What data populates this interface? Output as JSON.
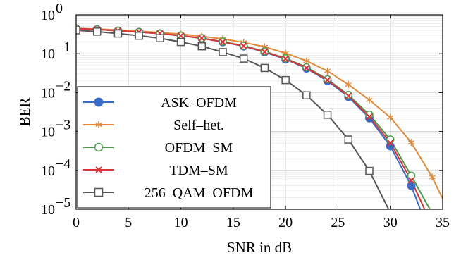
{
  "chart_data": {
    "type": "line",
    "xlabel": "SNR in dB",
    "ylabel": "BER",
    "xlim": [
      0,
      35
    ],
    "ylim_log10": [
      -5,
      0
    ],
    "y_scale": "log",
    "x_ticks": [
      0,
      5,
      10,
      15,
      20,
      25,
      30,
      35
    ],
    "x_tick_labels": [
      "0",
      "5",
      "10",
      "15",
      "20",
      "25",
      "30",
      "35"
    ],
    "y_tick_exponents": [
      0,
      -1,
      -2,
      -3,
      -4,
      -5
    ],
    "y_tick_base": "10",
    "grid": true,
    "legend_position": "lower-left",
    "series": [
      {
        "name": "ASK–OFDM",
        "color": "#3a6bc4",
        "marker": "filled-circle",
        "x": [
          0,
          2,
          4,
          6,
          8,
          10,
          12,
          14,
          16,
          18,
          20,
          22,
          24,
          26,
          28,
          30,
          32,
          34
        ],
        "y": [
          0.44,
          0.42,
          0.39,
          0.36,
          0.33,
          0.29,
          0.25,
          0.2,
          0.155,
          0.11,
          0.072,
          0.042,
          0.02,
          0.0078,
          0.0022,
          0.00042,
          4e-05,
          1.6e-06
        ],
        "curve_x": [
          35
        ],
        "curve_y": [
          2.5e-06
        ]
      },
      {
        "name": "Self–het.",
        "color": "#e08a3c",
        "marker": "asterisk",
        "x": [
          0,
          2,
          4,
          6,
          8,
          10,
          12,
          14,
          16,
          18,
          20,
          22,
          24,
          26,
          28,
          30,
          32,
          34
        ],
        "y": [
          0.45,
          0.43,
          0.41,
          0.38,
          0.35,
          0.32,
          0.28,
          0.24,
          0.195,
          0.15,
          0.103,
          0.065,
          0.036,
          0.016,
          0.0065,
          0.0023,
          0.00052,
          6.7e-05
        ],
        "curve_x": [
          35
        ],
        "curve_y": [
          1.85e-05
        ]
      },
      {
        "name": "OFDM–SM",
        "color": "#4a9a4a",
        "marker": "open-circle",
        "x": [
          0,
          2,
          4,
          6,
          8,
          10,
          12,
          14,
          16,
          18,
          20,
          22,
          24,
          26,
          28,
          30,
          32,
          34
        ],
        "y": [
          0.44,
          0.42,
          0.39,
          0.36,
          0.33,
          0.29,
          0.25,
          0.205,
          0.16,
          0.115,
          0.076,
          0.045,
          0.022,
          0.0087,
          0.0027,
          0.00062,
          7.3e-05,
          7.8e-06
        ],
        "curve_x": [
          35
        ],
        "curve_y": [
          2.5e-06
        ]
      },
      {
        "name": "TDM–SM",
        "color": "#d9343a",
        "marker": "cross",
        "x": [
          0,
          2,
          4,
          6,
          8,
          10,
          12,
          14,
          16,
          18,
          20,
          22,
          24,
          26,
          28,
          30,
          32,
          34
        ],
        "y": [
          0.44,
          0.42,
          0.39,
          0.36,
          0.33,
          0.29,
          0.25,
          0.2,
          0.157,
          0.112,
          0.074,
          0.043,
          0.021,
          0.0082,
          0.0024,
          0.00051,
          5.5e-05,
          3.8e-06
        ],
        "curve_x": [
          35
        ],
        "curve_y": [
          2.5e-06
        ]
      },
      {
        "name": "256–QAM–OFDM",
        "color": "#555555",
        "marker": "open-square",
        "x": [
          0,
          2,
          4,
          6,
          8,
          10,
          12,
          14,
          16,
          18,
          20,
          22,
          24,
          26,
          28,
          30,
          31
        ],
        "y": [
          0.4,
          0.37,
          0.33,
          0.29,
          0.25,
          0.2,
          0.155,
          0.11,
          0.075,
          0.043,
          0.021,
          0.0085,
          0.0027,
          0.00062,
          9.7e-05,
          8.2e-06,
          1.9e-06
        ],
        "curve_x": [
          31.6
        ],
        "curve_y": [
          9.5e-07
        ]
      }
    ]
  }
}
